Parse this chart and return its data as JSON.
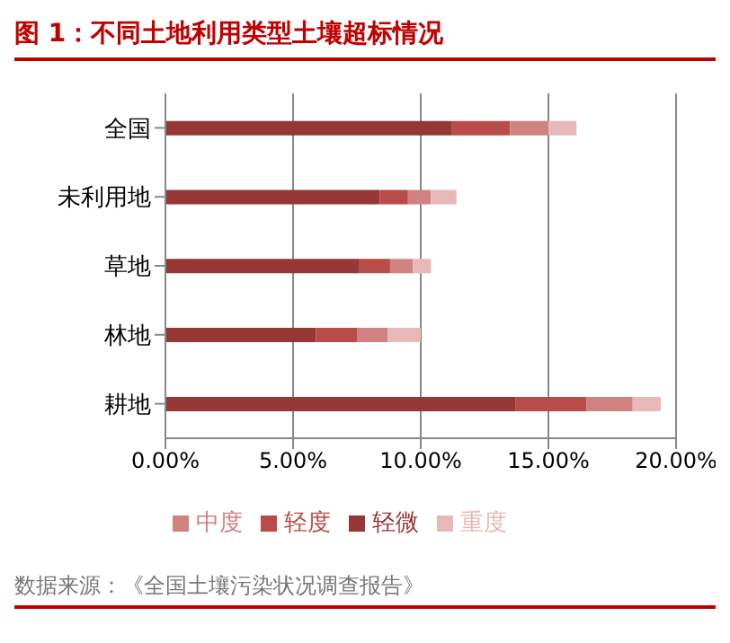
{
  "chart_data": {
    "type": "bar",
    "orientation": "horizontal",
    "stacked": true,
    "title": "图 1：不同土地利用类型土壤超标情况",
    "categories": [
      "全国",
      "未利用地",
      "草地",
      "林地",
      "耕地"
    ],
    "series": [
      {
        "name": "轻微",
        "color": "#953735",
        "values": [
          11.2,
          8.4,
          7.6,
          5.9,
          13.7
        ]
      },
      {
        "name": "轻度",
        "color": "#b94b48",
        "values": [
          2.3,
          1.1,
          1.2,
          1.6,
          2.8
        ]
      },
      {
        "name": "中度",
        "color": "#d08280",
        "values": [
          1.5,
          0.9,
          0.9,
          1.2,
          1.8
        ]
      },
      {
        "name": "重度",
        "color": "#e6b9b8",
        "values": [
          1.1,
          1.0,
          0.7,
          1.3,
          1.1
        ]
      }
    ],
    "xlim": [
      0,
      20
    ],
    "xticks": [
      {
        "value": 0,
        "label": "0.00%"
      },
      {
        "value": 5,
        "label": "5.00%"
      },
      {
        "value": 10,
        "label": "10.00%"
      },
      {
        "value": 15,
        "label": "15.00%"
      },
      {
        "value": 20,
        "label": "20.00%"
      }
    ],
    "grid": "x",
    "legend": "bottom",
    "annotations": [
      "数据来源：《全国土壤污染状况调查报告》"
    ]
  }
}
